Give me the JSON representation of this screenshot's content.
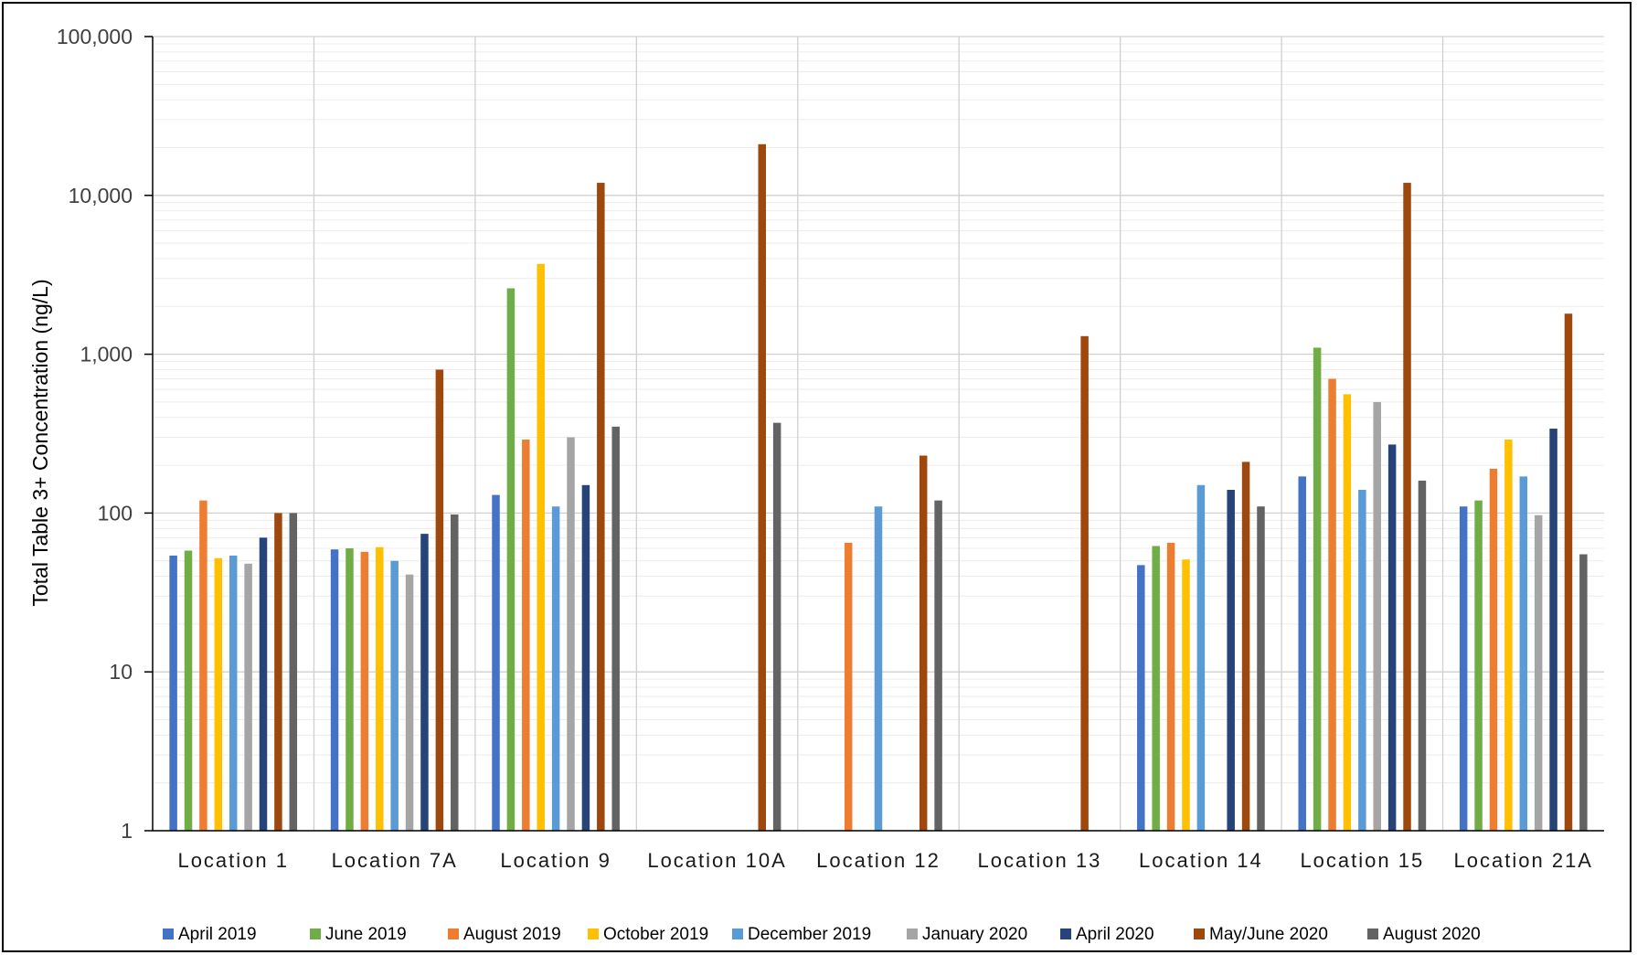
{
  "chart_data": {
    "type": "bar",
    "yscale": "log",
    "ylim": [
      1,
      100000
    ],
    "yticks": [
      "1",
      "10",
      "100",
      "1,000",
      "10,000",
      "100,000"
    ],
    "ylabel": "Total Table 3+ Concentration (ng/L)",
    "xlabel": "",
    "grid": true,
    "legend_position": "bottom",
    "categories": [
      "Location 1",
      "Location 7A",
      "Location 9",
      "Location 10A",
      "Location 12",
      "Location 13",
      "Location 14",
      "Location 15",
      "Location 21A"
    ],
    "series": [
      {
        "name": "April 2019",
        "color": "#4472C4",
        "values": [
          54,
          59,
          130,
          null,
          null,
          null,
          47,
          170,
          110
        ]
      },
      {
        "name": "June 2019",
        "color": "#70AD47",
        "values": [
          58,
          60,
          2600,
          null,
          null,
          null,
          62,
          1100,
          120
        ]
      },
      {
        "name": "August 2019",
        "color": "#ED7D31",
        "values": [
          120,
          57,
          290,
          null,
          65,
          null,
          65,
          700,
          190
        ]
      },
      {
        "name": "October 2019",
        "color": "#FFC000",
        "values": [
          52,
          61,
          3700,
          null,
          null,
          null,
          51,
          560,
          290
        ]
      },
      {
        "name": "December 2019",
        "color": "#5B9BD5",
        "values": [
          54,
          50,
          110,
          null,
          110,
          null,
          150,
          140,
          170
        ]
      },
      {
        "name": "January 2020",
        "color": "#A5A5A5",
        "values": [
          48,
          41,
          300,
          null,
          null,
          null,
          null,
          500,
          97
        ]
      },
      {
        "name": "April 2020",
        "color": "#264478",
        "values": [
          70,
          74,
          150,
          null,
          null,
          null,
          140,
          270,
          340
        ]
      },
      {
        "name": "May/June 2020",
        "color": "#9E480E",
        "values": [
          100,
          800,
          12000,
          21000,
          230,
          1300,
          210,
          12000,
          1800
        ]
      },
      {
        "name": "August 2020",
        "color": "#636363",
        "values": [
          100,
          98,
          350,
          370,
          120,
          null,
          110,
          160,
          55
        ]
      }
    ]
  }
}
